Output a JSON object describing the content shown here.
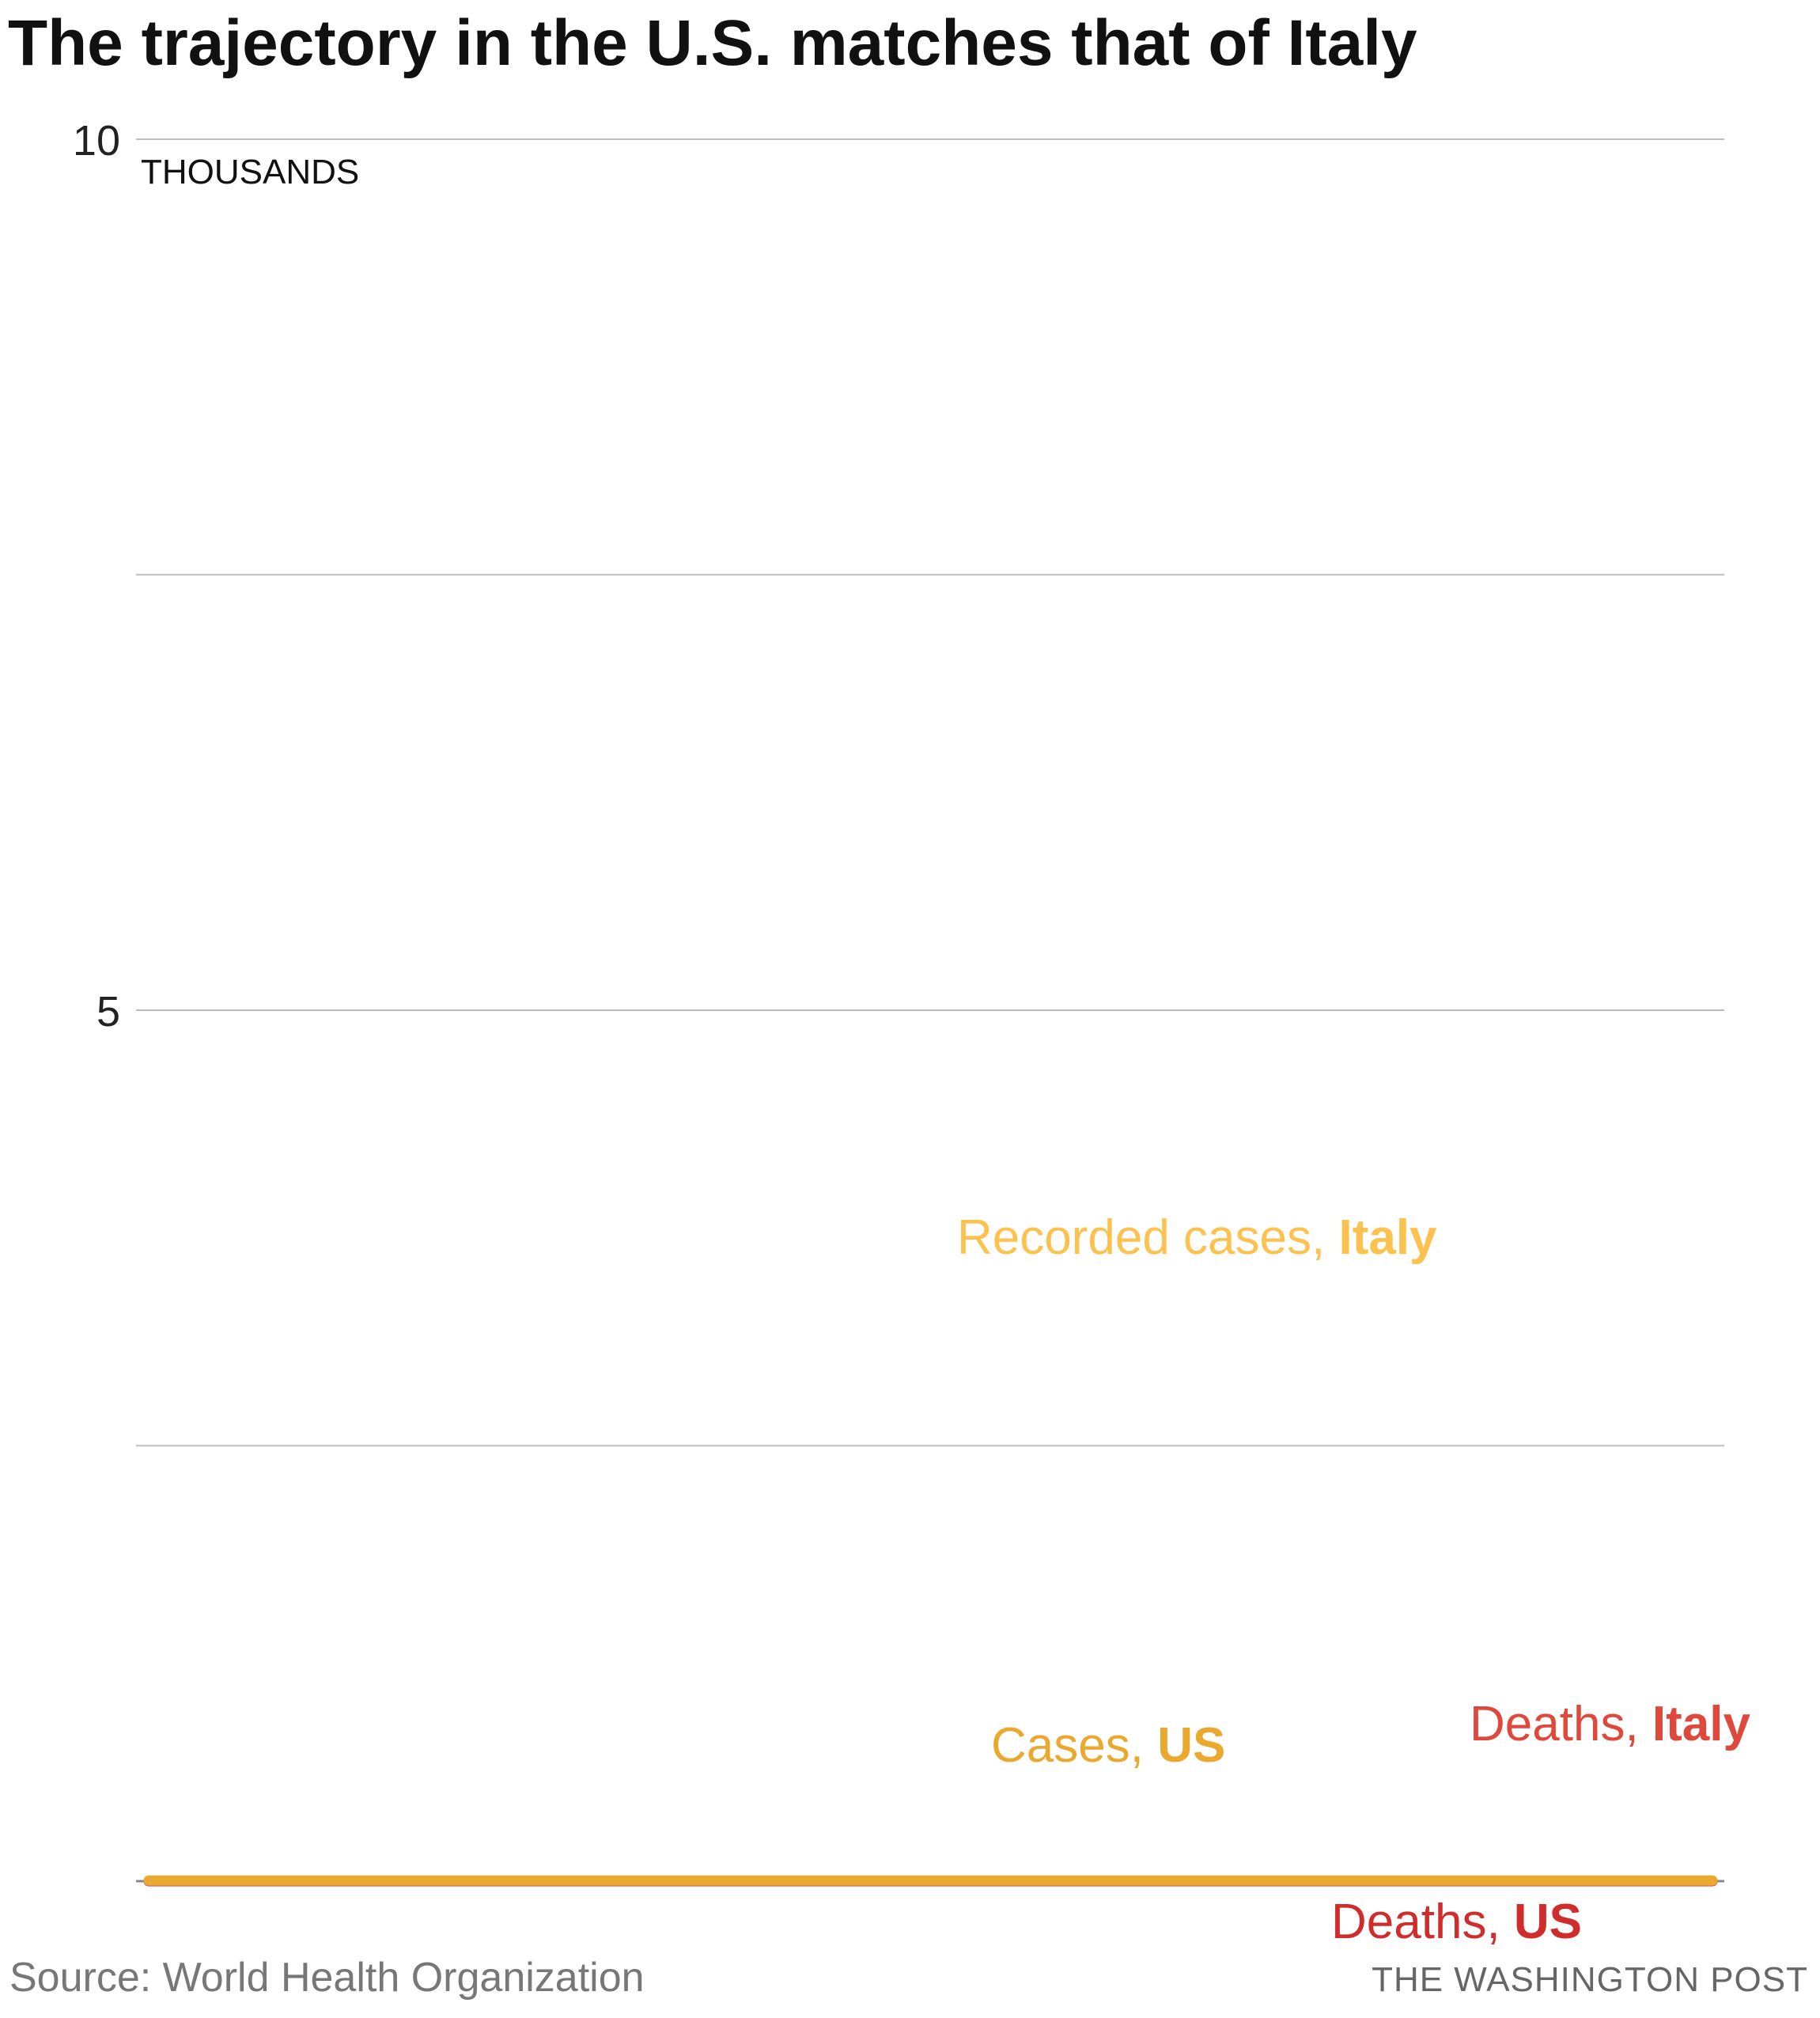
{
  "chart_data": {
    "type": "line",
    "title": "The trajectory in the U.S. matches that of Italy",
    "unit_label": "THOUSANDS",
    "yticks": [
      {
        "value": 10,
        "label": "10"
      },
      {
        "value": 5,
        "label": "5"
      }
    ],
    "ylim": [
      0,
      10
    ],
    "grid_values": [
      0,
      2.5,
      5,
      7.5,
      10
    ],
    "x_count": 41,
    "series": [
      {
        "key": "cases_italy",
        "label_main": "Recorded cases, ",
        "label_bold": "Italy",
        "color": "#fcc14e",
        "style": "dotted",
        "values": [
          0.003,
          0.003,
          0.003,
          0.003,
          0.003,
          0.003,
          0.003,
          0.003,
          0.003,
          0.003,
          0.003,
          0.003,
          0.003,
          0.003,
          0.003,
          0.003,
          0.003,
          0.003,
          0.003,
          0.003,
          0.003,
          0.003,
          0.003,
          0.003,
          0.003,
          0.003,
          0.003,
          0.003,
          0.003,
          0.003,
          0.003,
          0.003,
          0.003,
          0.003,
          0.003,
          0.003,
          0.003,
          0.003,
          0.003,
          0.003,
          0.003
        ]
      },
      {
        "key": "cases_us",
        "label_main": "Cases, ",
        "label_bold": "US",
        "color": "#eaa92e",
        "style": "solid",
        "values": [
          0.003,
          0.003,
          0.003,
          0.003,
          0.003,
          0.003,
          0.003,
          0.003,
          0.003,
          0.003,
          0.003,
          0.003,
          0.003,
          0.003,
          0.003,
          0.003,
          0.003,
          0.003,
          0.003,
          0.003,
          0.003,
          0.003,
          0.003,
          0.003,
          0.003,
          0.003,
          0.003,
          0.003,
          0.003,
          0.003,
          0.003,
          0.003,
          0.003,
          0.003,
          0.003,
          0.003,
          0.003,
          0.003,
          0.003,
          0.003,
          0.003
        ]
      },
      {
        "key": "deaths_italy",
        "label_main": "Deaths, ",
        "label_bold": "Italy",
        "color": "#e0483b",
        "style": "dotted",
        "values": [
          0,
          0,
          0,
          0,
          0,
          0,
          0,
          0,
          0,
          0,
          0,
          0,
          0,
          0,
          0,
          0,
          0,
          0,
          0,
          0,
          0,
          0,
          0,
          0,
          0,
          0,
          0,
          0,
          0,
          0,
          0,
          0,
          0,
          0,
          0,
          0,
          0,
          0,
          0,
          0,
          0
        ]
      },
      {
        "key": "deaths_us",
        "label_main": "Deaths, ",
        "label_bold": "US",
        "color": "#d02c2c",
        "style": "solid",
        "values": [
          0,
          0,
          0,
          0,
          0,
          0,
          0,
          0,
          0,
          0,
          0,
          0,
          0,
          0,
          0,
          0,
          0,
          0,
          0,
          0,
          0,
          0,
          0,
          0,
          0,
          0,
          0,
          0,
          0,
          0,
          0,
          0,
          0,
          0,
          0,
          0,
          0,
          0,
          0,
          0,
          0
        ]
      }
    ],
    "source": "Source: World Health Organization",
    "credit": "THE WASHINGTON POST"
  }
}
